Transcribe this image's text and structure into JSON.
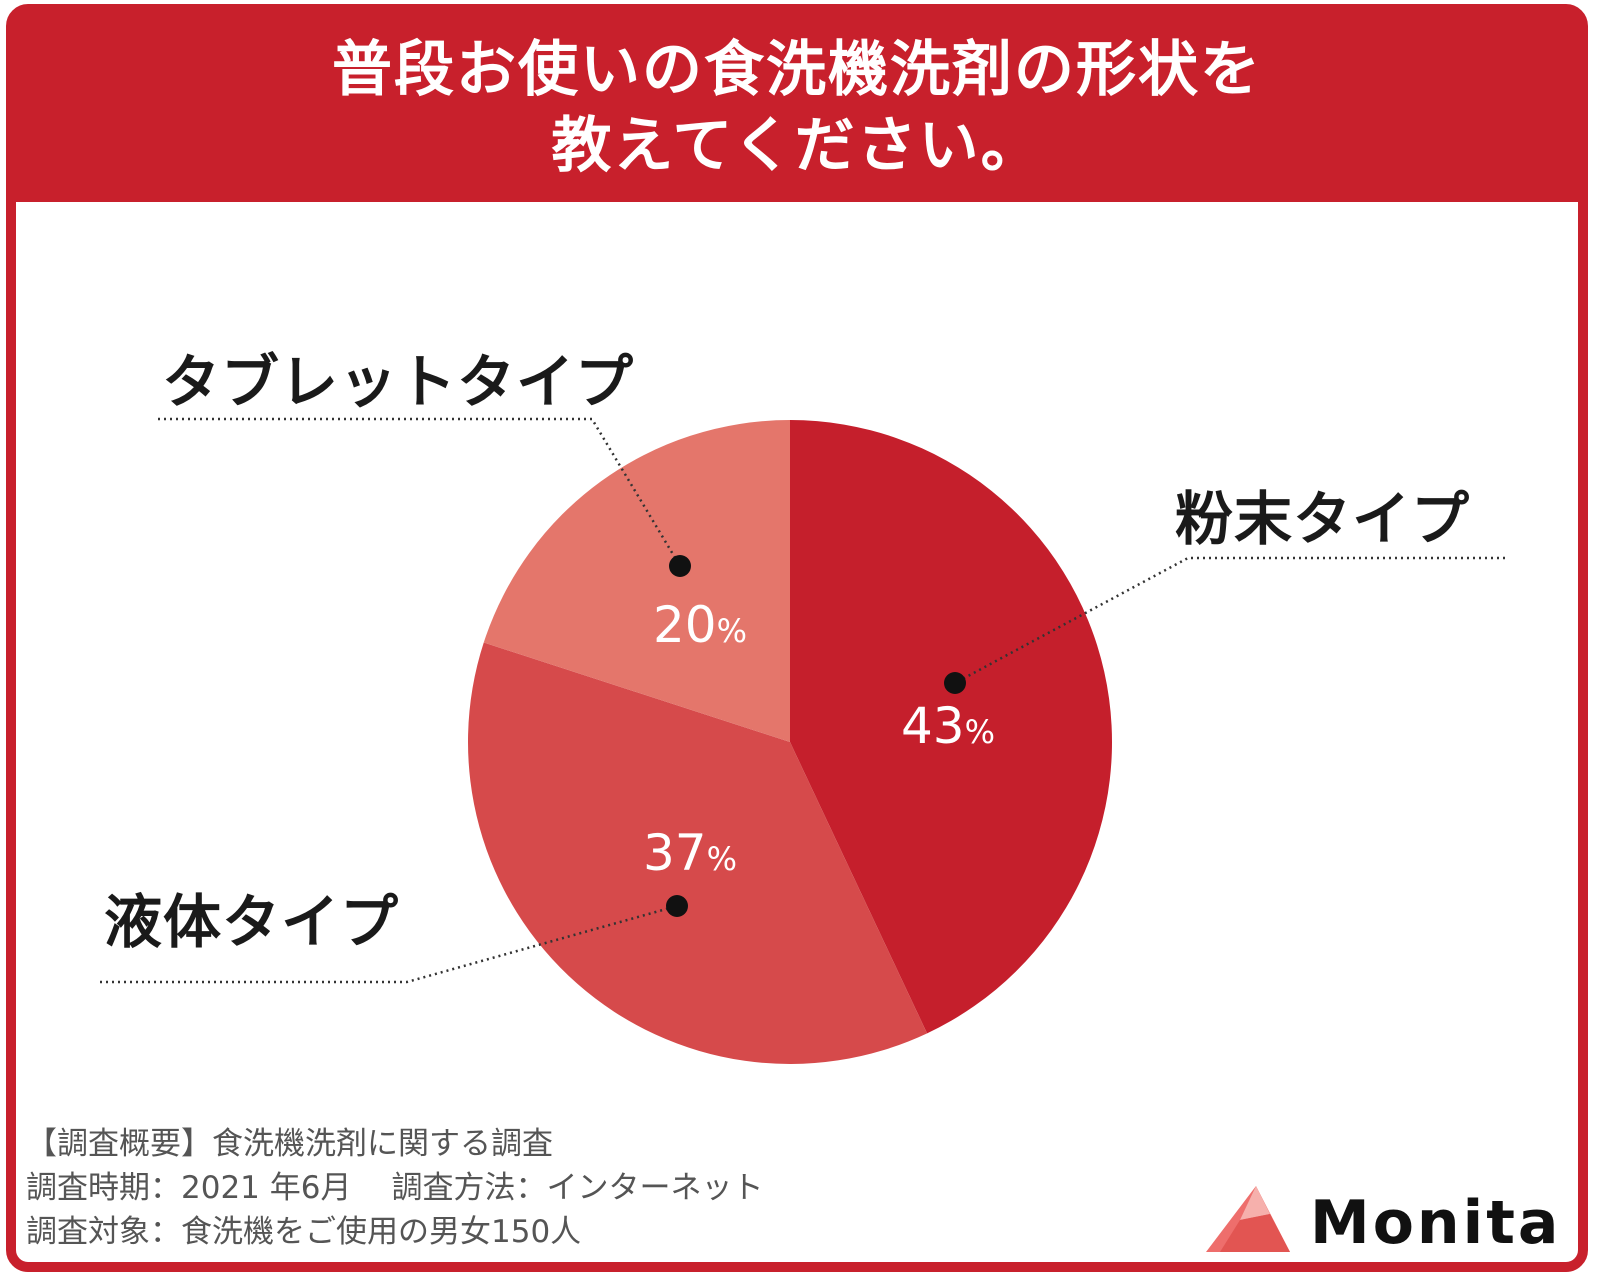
{
  "title": {
    "line1": "普段お使いの食洗機洗剤の形状を",
    "line2": "教えてください。"
  },
  "colors": {
    "brand_red": "#c8202c",
    "slice_powder": "#c51f2c",
    "slice_liquid": "#d64a4b",
    "slice_tablet": "#e4766b"
  },
  "chart_data": {
    "type": "pie",
    "start": "12 o'clock, clockwise",
    "slices": [
      {
        "label": "粉末タイプ",
        "value": 43,
        "value_text": "43",
        "unit": "%",
        "color": "#c51f2c"
      },
      {
        "label": "液体タイプ",
        "value": 37,
        "value_text": "37",
        "unit": "%",
        "color": "#d64a4b"
      },
      {
        "label": "タブレットタイプ",
        "value": 20,
        "value_text": "20",
        "unit": "%",
        "color": "#e4766b"
      }
    ]
  },
  "survey": {
    "line1": "【調査概要】食洗機洗剤に関する調査",
    "line2a": "調査時期：2021 年6月",
    "line2b": "調査方法：インターネット",
    "line3": "調査対象：食洗機をご使用の男女150人"
  },
  "logo": {
    "text": "Monita",
    "icon": "monita-triangle-logo-icon"
  }
}
